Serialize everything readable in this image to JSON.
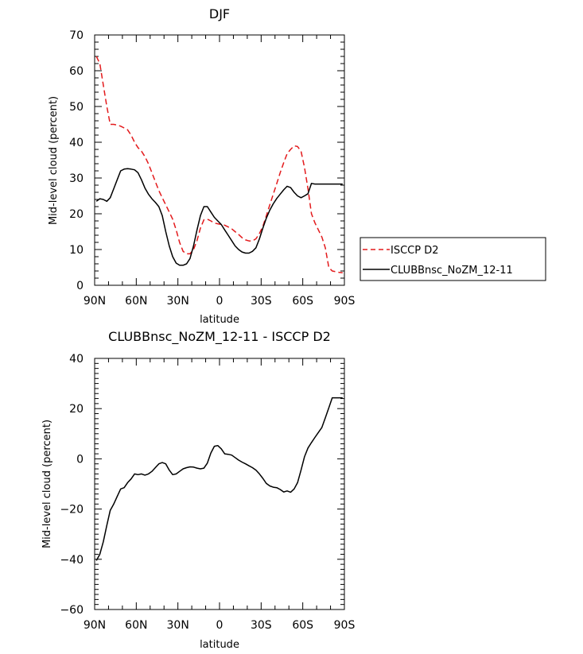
{
  "chart_data": [
    {
      "type": "line",
      "title": "DJF",
      "xlabel": "latitude",
      "ylabel": "Mid-level cloud (percent)",
      "xlim": [
        90,
        -90
      ],
      "ylim": [
        0,
        70
      ],
      "x_tick_labels": [
        "90N",
        "60N",
        "30N",
        "0",
        "30S",
        "60S",
        "90S"
      ],
      "y_tick_labels": [
        "0",
        "10",
        "20",
        "30",
        "40",
        "50",
        "60",
        "70"
      ],
      "legend_position": "right",
      "series": [
        {
          "name": "ISCCP D2",
          "color": "#e31a1c",
          "dash": "dashed",
          "x": [
            88.75,
            86.25,
            83.75,
            81.25,
            78.75,
            76.25,
            73.75,
            71.25,
            68.75,
            66.25,
            63.75,
            61.25,
            58.75,
            56.25,
            53.75,
            51.25,
            48.75,
            46.25,
            43.75,
            41.25,
            38.75,
            36.25,
            33.75,
            31.25,
            28.75,
            26.25,
            23.75,
            21.25,
            18.75,
            16.25,
            13.75,
            11.25,
            8.75,
            6.25,
            3.75,
            1.25,
            -1.25,
            -3.75,
            -6.25,
            -8.75,
            -11.25,
            -13.75,
            -16.25,
            -18.75,
            -21.25,
            -23.75,
            -26.25,
            -28.75,
            -31.25,
            -33.75,
            -36.25,
            -38.75,
            -41.25,
            -43.75,
            -46.25,
            -48.75,
            -51.25,
            -53.75,
            -56.25,
            -58.75,
            -61.25,
            -63.75,
            -66.25,
            -68.75,
            -71.25,
            -73.75,
            -76.25,
            -78.75,
            -81.25,
            -83.75,
            -86.25,
            -88.75
          ],
          "values": [
            64,
            62,
            56,
            50,
            45,
            45,
            44.8,
            44.5,
            44,
            43.5,
            42,
            40,
            38.5,
            37.5,
            36,
            34,
            31.5,
            29,
            26.5,
            24.5,
            22.5,
            20.5,
            18.5,
            15.5,
            12,
            9.5,
            8.8,
            8.8,
            10,
            12.5,
            16,
            18.3,
            18.5,
            18,
            17.4,
            17.2,
            17,
            16.8,
            16.3,
            15.8,
            15,
            14.2,
            13.3,
            12.7,
            12.4,
            12.4,
            13,
            14.5,
            16.5,
            19.5,
            22.5,
            25.5,
            28.5,
            31.5,
            34.3,
            36.8,
            38,
            39,
            38.8,
            37.5,
            33,
            27,
            20,
            17.5,
            15.5,
            13.5,
            10.5,
            5,
            4,
            3.8,
            3.6,
            3.5
          ]
        },
        {
          "name": "CLUBBnsc_NoZM_12-11",
          "color": "#000000",
          "dash": "solid",
          "x": [
            88.75,
            86.25,
            83.75,
            81.25,
            78.75,
            76.25,
            73.75,
            71.25,
            68.75,
            66.25,
            63.75,
            61.25,
            58.75,
            56.25,
            53.75,
            51.25,
            48.75,
            46.25,
            43.75,
            41.25,
            38.75,
            36.25,
            33.75,
            31.25,
            28.75,
            26.25,
            23.75,
            21.25,
            18.75,
            16.25,
            13.75,
            11.25,
            8.75,
            6.25,
            3.75,
            1.25,
            -1.25,
            -3.75,
            -6.25,
            -8.75,
            -11.25,
            -13.75,
            -16.25,
            -18.75,
            -21.25,
            -23.75,
            -26.25,
            -28.75,
            -31.25,
            -33.75,
            -36.25,
            -38.75,
            -41.25,
            -43.75,
            -46.25,
            -48.75,
            -51.25,
            -53.75,
            -56.25,
            -58.75,
            -61.25,
            -63.75,
            -66.25,
            -68.75,
            -71.25,
            -73.75,
            -76.25,
            -78.75,
            -81.25,
            -83.75,
            -86.25,
            -88.75
          ],
          "values": [
            23.5,
            24.2,
            24,
            23.5,
            24.5,
            27,
            29.5,
            32,
            32.5,
            32.6,
            32.5,
            32.3,
            31.5,
            29.5,
            27.2,
            25.5,
            24.2,
            23.2,
            22,
            19.5,
            15,
            11,
            8,
            6.2,
            5.6,
            5.6,
            6,
            7.5,
            11,
            15.5,
            19.5,
            22,
            22,
            20.5,
            19,
            18,
            17,
            15.5,
            14,
            12.5,
            11,
            10,
            9.3,
            9,
            9,
            9.5,
            10.5,
            13,
            16,
            18.8,
            21,
            22.8,
            24.3,
            25.5,
            26.7,
            27.7,
            27.3,
            26,
            25,
            24.5,
            25,
            25.6,
            28.5,
            28.3,
            28.3,
            28.3,
            28.3,
            28.3,
            28.3,
            28.3,
            28.3,
            28.3
          ]
        }
      ]
    },
    {
      "type": "line",
      "title": "CLUBBnsc_NoZM_12-11 - ISCCP D2",
      "xlabel": "latitude",
      "ylabel": "Mid-level cloud (percent)",
      "xlim": [
        90,
        -90
      ],
      "ylim": [
        -60,
        40
      ],
      "x_tick_labels": [
        "90N",
        "60N",
        "30N",
        "0",
        "30S",
        "60S",
        "90S"
      ],
      "y_tick_labels": [
        "-60",
        "-40",
        "-20",
        "0",
        "20",
        "40"
      ],
      "series": [
        {
          "color": "#000000",
          "dash": "solid",
          "x": [
            88.75,
            86.25,
            83.75,
            81.25,
            78.75,
            76.25,
            73.75,
            71.25,
            68.75,
            66.25,
            63.75,
            61.25,
            58.75,
            56.25,
            53.75,
            51.25,
            48.75,
            46.25,
            43.75,
            41.25,
            38.75,
            36.25,
            33.75,
            31.25,
            28.75,
            26.25,
            23.75,
            21.25,
            18.75,
            16.25,
            13.75,
            11.25,
            8.75,
            6.25,
            3.75,
            1.25,
            -1.25,
            -3.75,
            -6.25,
            -8.75,
            -11.25,
            -13.75,
            -16.25,
            -18.75,
            -21.25,
            -23.75,
            -26.25,
            -28.75,
            -31.25,
            -33.75,
            -36.25,
            -38.75,
            -41.25,
            -43.75,
            -46.25,
            -48.75,
            -51.25,
            -53.75,
            -56.25,
            -58.75,
            -61.25,
            -63.75,
            -66.25,
            -68.75,
            -71.25,
            -73.75,
            -76.25,
            -78.75,
            -81.25,
            -83.75,
            -86.25,
            -88.75
          ],
          "values": [
            -40.5,
            -38,
            -33,
            -26.5,
            -20.5,
            -18,
            -15,
            -12,
            -11.5,
            -9.5,
            -8,
            -6,
            -6.3,
            -6,
            -6.5,
            -6,
            -5,
            -3.5,
            -2,
            -1.5,
            -2,
            -4.5,
            -6.3,
            -6,
            -5,
            -4,
            -3.5,
            -3.2,
            -3.3,
            -3.7,
            -4,
            -3.7,
            -1.7,
            2.3,
            5,
            5.3,
            4,
            2,
            1.8,
            1.5,
            0.5,
            -0.5,
            -1.3,
            -2,
            -2.8,
            -3.5,
            -4.5,
            -6,
            -7.8,
            -9.8,
            -10.8,
            -11.3,
            -11.5,
            -12.2,
            -13.2,
            -12.8,
            -13.3,
            -12,
            -9.5,
            -4.5,
            0.8,
            4.3,
            6.5,
            8.5,
            10.5,
            12.5,
            16.3,
            20.3,
            24.3,
            24.3,
            24.3,
            24.3
          ]
        }
      ]
    }
  ]
}
